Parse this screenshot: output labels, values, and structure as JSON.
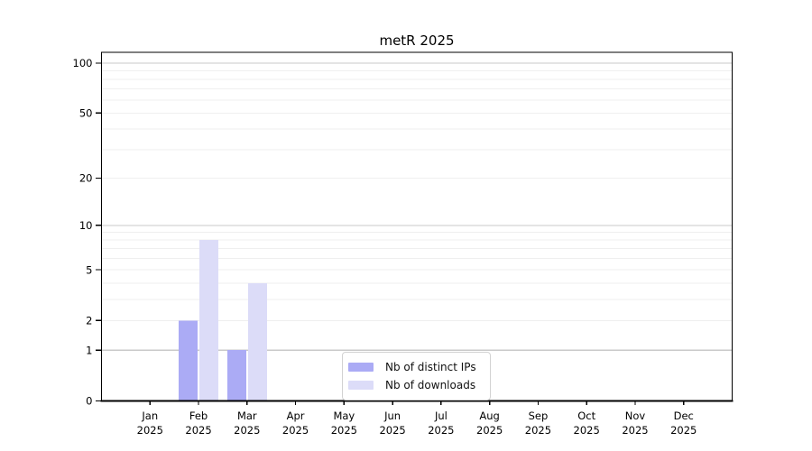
{
  "chart_data": {
    "type": "bar",
    "title": "metR 2025",
    "categories": [
      "Jan",
      "Feb",
      "Mar",
      "Apr",
      "May",
      "Jun",
      "Jul",
      "Aug",
      "Sep",
      "Oct",
      "Nov",
      "Dec"
    ],
    "x_year_label": "2025",
    "series": [
      {
        "name": "Nb of distinct IPs",
        "color": "#ababf5",
        "values": [
          0,
          2,
          1,
          0,
          0,
          0,
          0,
          0,
          0,
          0,
          0,
          0
        ]
      },
      {
        "name": "Nb of downloads",
        "color": "#dcdcf8",
        "values": [
          0,
          8,
          4,
          0,
          0,
          0,
          0,
          0,
          0,
          0,
          0,
          0
        ]
      }
    ],
    "yscale": "log1p",
    "ylim": [
      0,
      116
    ],
    "ytick_values": [
      0,
      1,
      2,
      5,
      10,
      20,
      50,
      100
    ],
    "ytick_labels": [
      "0",
      "1",
      "2",
      "5",
      "10",
      "20",
      "50",
      "100"
    ],
    "grid": {
      "major_at": [
        1,
        10,
        100
      ],
      "minor_at": [
        2,
        3,
        4,
        5,
        6,
        7,
        8,
        9,
        20,
        30,
        40,
        50,
        60,
        70,
        80,
        90
      ],
      "major_color": "#c9c9c9",
      "minor_color": "#efefef"
    },
    "axis_color": "#000000",
    "legend_position": "lower-center-inside"
  }
}
